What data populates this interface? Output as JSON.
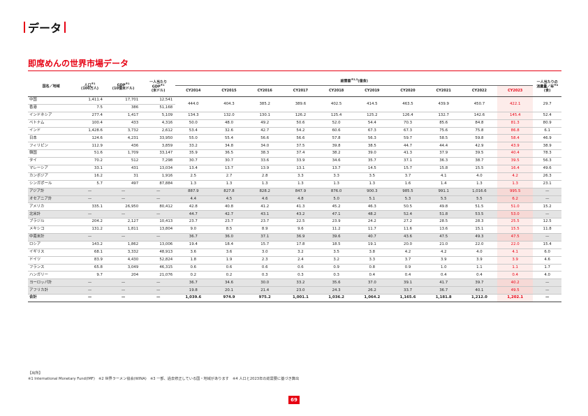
{
  "page": {
    "section_title": "データ",
    "subtitle": "即席めんの世界市場データ",
    "page_number": "69"
  },
  "table": {
    "headers": {
      "country": "国名／地域",
      "population": "人口",
      "population_note": "※1",
      "population_unit": "(100万人)",
      "gdp": "GDP",
      "gdp_note": "※1",
      "gdp_unit": "(10億米ドル)",
      "gdp_per_capita_1": "一人当たり",
      "gdp_per_capita_2": "GDP",
      "gdp_per_capita_note": "※1",
      "gdp_per_capita_unit": "(米ドル)",
      "demand_group": "総需要",
      "demand_note": "※2,3",
      "demand_unit": "(億食)",
      "per_capita_1": "一人当たりの",
      "per_capita_2": "消費量／年",
      "per_capita_note": "※4",
      "per_capita_unit": "(食)"
    },
    "years": [
      "CY2014",
      "CY2015",
      "CY2016",
      "CY2017",
      "CY2018",
      "CY2019",
      "CY2020",
      "CY2021",
      "CY2022",
      "CY2023"
    ],
    "rows": [
      {
        "country": "中国",
        "pop": "1,411.4",
        "gdp": "17,701",
        "gdppc": "12,541",
        "demand": [
          "444.0",
          "404.3",
          "385.2",
          "389.6",
          "402.5",
          "414.5",
          "463.5",
          "439.9",
          "450.7",
          "422.1"
        ],
        "pc": "29.7",
        "merge_next": true,
        "type": "normal"
      },
      {
        "country": "香港",
        "pop": "7.5",
        "gdp": "386",
        "gdppc": "51,168",
        "type": "merged"
      },
      {
        "country": "インドネシア",
        "pop": "277.4",
        "gdp": "1,417",
        "gdppc": "5,109",
        "demand": [
          "134.3",
          "132.0",
          "130.1",
          "126.2",
          "125.4",
          "125.2",
          "126.4",
          "132.7",
          "142.6",
          "145.4"
        ],
        "pc": "52.4",
        "type": "normal"
      },
      {
        "country": "ベトナム",
        "pop": "100.4",
        "gdp": "433",
        "gdppc": "4,316",
        "demand": [
          "50.0",
          "48.0",
          "49.2",
          "50.6",
          "52.0",
          "54.4",
          "70.3",
          "85.6",
          "84.8",
          "81.3"
        ],
        "pc": "80.9",
        "type": "normal"
      },
      {
        "country": "インド",
        "pop": "1,428.6",
        "gdp": "3,732",
        "gdppc": "2,612",
        "demand": [
          "53.4",
          "32.6",
          "42.7",
          "54.2",
          "60.6",
          "67.3",
          "67.3",
          "75.6",
          "75.8",
          "86.8"
        ],
        "pc": "6.1",
        "type": "normal"
      },
      {
        "country": "日本",
        "pop": "124.6",
        "gdp": "4,231",
        "gdppc": "33,950",
        "demand": [
          "55.0",
          "55.4",
          "56.6",
          "56.6",
          "57.8",
          "56.3",
          "59.7",
          "58.5",
          "59.8",
          "58.4"
        ],
        "pc": "46.9",
        "type": "normal"
      },
      {
        "country": "フィリピン",
        "pop": "112.9",
        "gdp": "436",
        "gdppc": "3,859",
        "demand": [
          "33.2",
          "34.8",
          "34.0",
          "37.5",
          "39.8",
          "38.5",
          "44.7",
          "44.4",
          "42.9",
          "43.9"
        ],
        "pc": "38.9",
        "type": "normal"
      },
      {
        "country": "韓国",
        "pop": "51.6",
        "gdp": "1,709",
        "gdppc": "33,147",
        "demand": [
          "35.9",
          "36.5",
          "38.3",
          "37.4",
          "38.2",
          "39.0",
          "41.3",
          "37.9",
          "39.5",
          "40.4"
        ],
        "pc": "78.3",
        "type": "normal"
      },
      {
        "country": "タイ",
        "pop": "70.2",
        "gdp": "512",
        "gdppc": "7,298",
        "demand": [
          "30.7",
          "30.7",
          "33.6",
          "33.9",
          "34.6",
          "35.7",
          "37.1",
          "36.3",
          "38.7",
          "39.5"
        ],
        "pc": "56.3",
        "type": "normal"
      },
      {
        "country": "マレーシア",
        "pop": "33.1",
        "gdp": "431",
        "gdppc": "13,034",
        "demand": [
          "13.4",
          "13.7",
          "13.9",
          "13.1",
          "13.7",
          "14.5",
          "15.7",
          "15.8",
          "15.5",
          "16.4"
        ],
        "pc": "49.6",
        "type": "normal"
      },
      {
        "country": "カンボジア",
        "pop": "16.2",
        "gdp": "31",
        "gdppc": "1,916",
        "demand": [
          "2.5",
          "2.7",
          "2.8",
          "3.3",
          "3.3",
          "3.5",
          "3.7",
          "4.1",
          "4.0",
          "4.2"
        ],
        "pc": "26.3",
        "type": "normal"
      },
      {
        "country": "シンガポール",
        "pop": "5.7",
        "gdp": "497",
        "gdppc": "87,884",
        "demand": [
          "1.3",
          "1.3",
          "1.3",
          "1.3",
          "1.3",
          "1.3",
          "1.6",
          "1.4",
          "1.3",
          "1.3"
        ],
        "pc": "23.1",
        "type": "normal"
      },
      {
        "country": "アジア計",
        "pop": "—",
        "gdp": "—",
        "gdppc": "—",
        "demand": [
          "887.9",
          "827.8",
          "828.2",
          "847.9",
          "876.0",
          "900.3",
          "985.5",
          "991.1",
          "1,016.6",
          "995.5"
        ],
        "pc": "—",
        "type": "subtotal"
      },
      {
        "country": "オセアニア計",
        "pop": "—",
        "gdp": "—",
        "gdppc": "—",
        "demand": [
          "4.4",
          "4.5",
          "4.6",
          "4.8",
          "5.0",
          "5.1",
          "5.3",
          "5.5",
          "5.5",
          "6.2"
        ],
        "pc": "—",
        "type": "subtotal"
      },
      {
        "country": "アメリカ",
        "pop": "335.1",
        "gdp": "26,950",
        "gdppc": "80,412",
        "demand": [
          "42.8",
          "40.8",
          "41.2",
          "41.3",
          "45.2",
          "46.3",
          "50.5",
          "49.8",
          "51.5",
          "51.0"
        ],
        "pc": "15.2",
        "type": "normal"
      },
      {
        "country": "北米計",
        "pop": "—",
        "gdp": "—",
        "gdppc": "—",
        "demand": [
          "44.7",
          "42.7",
          "43.1",
          "43.2",
          "47.1",
          "48.2",
          "52.4",
          "51.8",
          "53.5",
          "53.0"
        ],
        "pc": "—",
        "type": "subtotal"
      },
      {
        "country": "ブラジル",
        "pop": "204.2",
        "gdp": "2,127",
        "gdppc": "10,413",
        "demand": [
          "23.7",
          "23.7",
          "23.7",
          "22.5",
          "23.9",
          "24.2",
          "27.2",
          "28.5",
          "28.3",
          "25.5"
        ],
        "pc": "12.5",
        "type": "normal"
      },
      {
        "country": "メキシコ",
        "pop": "131.2",
        "gdp": "1,811",
        "gdppc": "13,804",
        "demand": [
          "9.0",
          "8.5",
          "8.9",
          "9.6",
          "11.2",
          "11.7",
          "11.6",
          "13.6",
          "15.1",
          "15.5"
        ],
        "pc": "11.8",
        "type": "normal"
      },
      {
        "country": "中南米計",
        "pop": "—",
        "gdp": "—",
        "gdppc": "—",
        "demand": [
          "36.7",
          "36.0",
          "37.1",
          "36.9",
          "39.6",
          "40.7",
          "43.6",
          "47.5",
          "49.3",
          "47.5"
        ],
        "pc": "—",
        "type": "subtotal"
      },
      {
        "country": "ロシア",
        "pop": "143.2",
        "gdp": "1,862",
        "gdppc": "13,006",
        "demand": [
          "19.4",
          "18.4",
          "15.7",
          "17.8",
          "18.5",
          "19.1",
          "20.0",
          "21.0",
          "22.0",
          "22.0"
        ],
        "pc": "15.4",
        "type": "normal"
      },
      {
        "country": "イギリス",
        "pop": "68.1",
        "gdp": "3,332",
        "gdppc": "48,913",
        "demand": [
          "3.6",
          "3.6",
          "3.0",
          "3.2",
          "3.5",
          "3.8",
          "4.2",
          "4.2",
          "4.0",
          "4.1"
        ],
        "pc": "6.0",
        "type": "normal"
      },
      {
        "country": "ドイツ",
        "pop": "83.9",
        "gdp": "4,430",
        "gdppc": "52,824",
        "demand": [
          "1.8",
          "1.9",
          "2.3",
          "2.4",
          "3.2",
          "3.3",
          "3.7",
          "3.9",
          "3.9",
          "3.9"
        ],
        "pc": "4.6",
        "type": "normal"
      },
      {
        "country": "フランス",
        "pop": "65.8",
        "gdp": "3,049",
        "gdppc": "46,315",
        "demand": [
          "0.6",
          "0.6",
          "0.6",
          "0.6",
          "0.9",
          "0.8",
          "0.9",
          "1.0",
          "1.1",
          "1.1"
        ],
        "pc": "1.7",
        "type": "normal"
      },
      {
        "country": "ハンガリー",
        "pop": "9.7",
        "gdp": "204",
        "gdppc": "21,076",
        "demand": [
          "0.2",
          "0.2",
          "0.3",
          "0.3",
          "0.3",
          "0.4",
          "0.4",
          "0.4",
          "0.4",
          "0.4"
        ],
        "pc": "4.0",
        "type": "normal"
      },
      {
        "country": "ヨーロッパ計",
        "pop": "—",
        "gdp": "—",
        "gdppc": "—",
        "demand": [
          "36.7",
          "34.6",
          "30.0",
          "33.2",
          "35.6",
          "37.0",
          "39.1",
          "41.7",
          "39.7",
          "40.2"
        ],
        "pc": "—",
        "type": "subtotal"
      },
      {
        "country": "アフリカ計",
        "pop": "—",
        "gdp": "—",
        "gdppc": "—",
        "demand": [
          "19.8",
          "20.1",
          "21.4",
          "23.0",
          "24.3",
          "26.2",
          "33.7",
          "36.7",
          "40.1",
          "49.5"
        ],
        "pc": "—",
        "type": "subtotal"
      },
      {
        "country": "合計",
        "pop": "—",
        "gdp": "—",
        "gdppc": "—",
        "demand": [
          "1,039.6",
          "974.9",
          "975.2",
          "1,001.1",
          "1,036.2",
          "1,064.2",
          "1,165.6",
          "1,181.8",
          "1,212.0",
          "1,202.1"
        ],
        "pc": "—",
        "type": "total"
      }
    ]
  },
  "notes": {
    "source_label": "【出所】",
    "line": "※1 International Monetary Fund(IMF)　※2 世界ラーメン協会(WINA)　※3 一部、過去修正している国・地域があります　※4 人口と2023年の総需要に基づき算出"
  }
}
